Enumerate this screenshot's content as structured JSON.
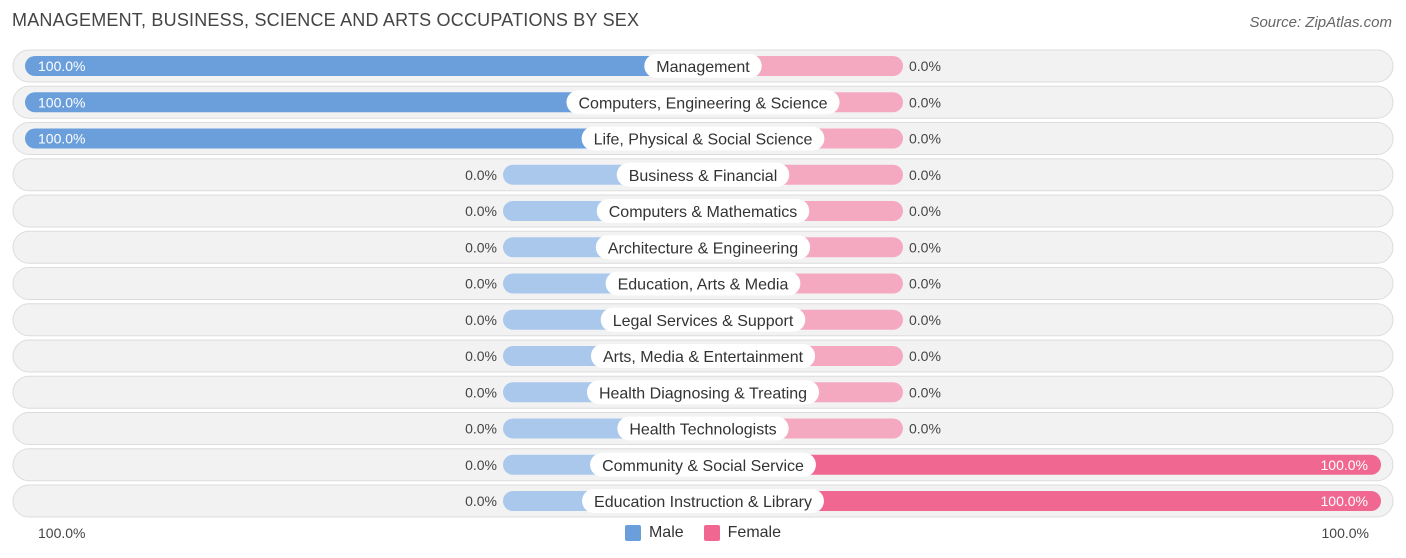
{
  "title": "MANAGEMENT, BUSINESS, SCIENCE AND ARTS OCCUPATIONS BY SEX",
  "source": "Source: ZipAtlas.com",
  "colors": {
    "male_full": "#6a9fdc",
    "male_light": "#a9c8ec",
    "female_full": "#f06892",
    "female_light": "#f5a9c1",
    "row_bg": "#f2f2f2",
    "row_border": "#dcdcdc"
  },
  "legend": {
    "male": "Male",
    "female": "Female"
  },
  "axis": {
    "left": "100.0%",
    "right": "100.0%"
  },
  "chart_data": {
    "type": "bar",
    "orientation": "horizontal-diverging",
    "title": "MANAGEMENT, BUSINESS, SCIENCE AND ARTS OCCUPATIONS BY SEX",
    "categories": [
      "Management",
      "Computers, Engineering & Science",
      "Life, Physical & Social Science",
      "Business & Financial",
      "Computers & Mathematics",
      "Architecture & Engineering",
      "Education, Arts & Media",
      "Legal Services & Support",
      "Arts, Media & Entertainment",
      "Health Diagnosing & Treating",
      "Health Technologists",
      "Community & Social Service",
      "Education Instruction & Library"
    ],
    "series": [
      {
        "name": "Male",
        "values": [
          100,
          100,
          100,
          0,
          0,
          0,
          0,
          0,
          0,
          0,
          0,
          0,
          0
        ]
      },
      {
        "name": "Female",
        "values": [
          0,
          0,
          0,
          0,
          0,
          0,
          0,
          0,
          0,
          0,
          0,
          100,
          100
        ]
      }
    ],
    "value_labels": {
      "male": [
        "100.0%",
        "100.0%",
        "100.0%",
        "0.0%",
        "0.0%",
        "0.0%",
        "0.0%",
        "0.0%",
        "0.0%",
        "0.0%",
        "0.0%",
        "0.0%",
        "0.0%"
      ],
      "female": [
        "0.0%",
        "0.0%",
        "0.0%",
        "0.0%",
        "0.0%",
        "0.0%",
        "0.0%",
        "0.0%",
        "0.0%",
        "0.0%",
        "0.0%",
        "100.0%",
        "100.0%"
      ]
    },
    "xlim": [
      -100,
      100
    ],
    "unit": "%",
    "legend_position": "bottom-center"
  }
}
